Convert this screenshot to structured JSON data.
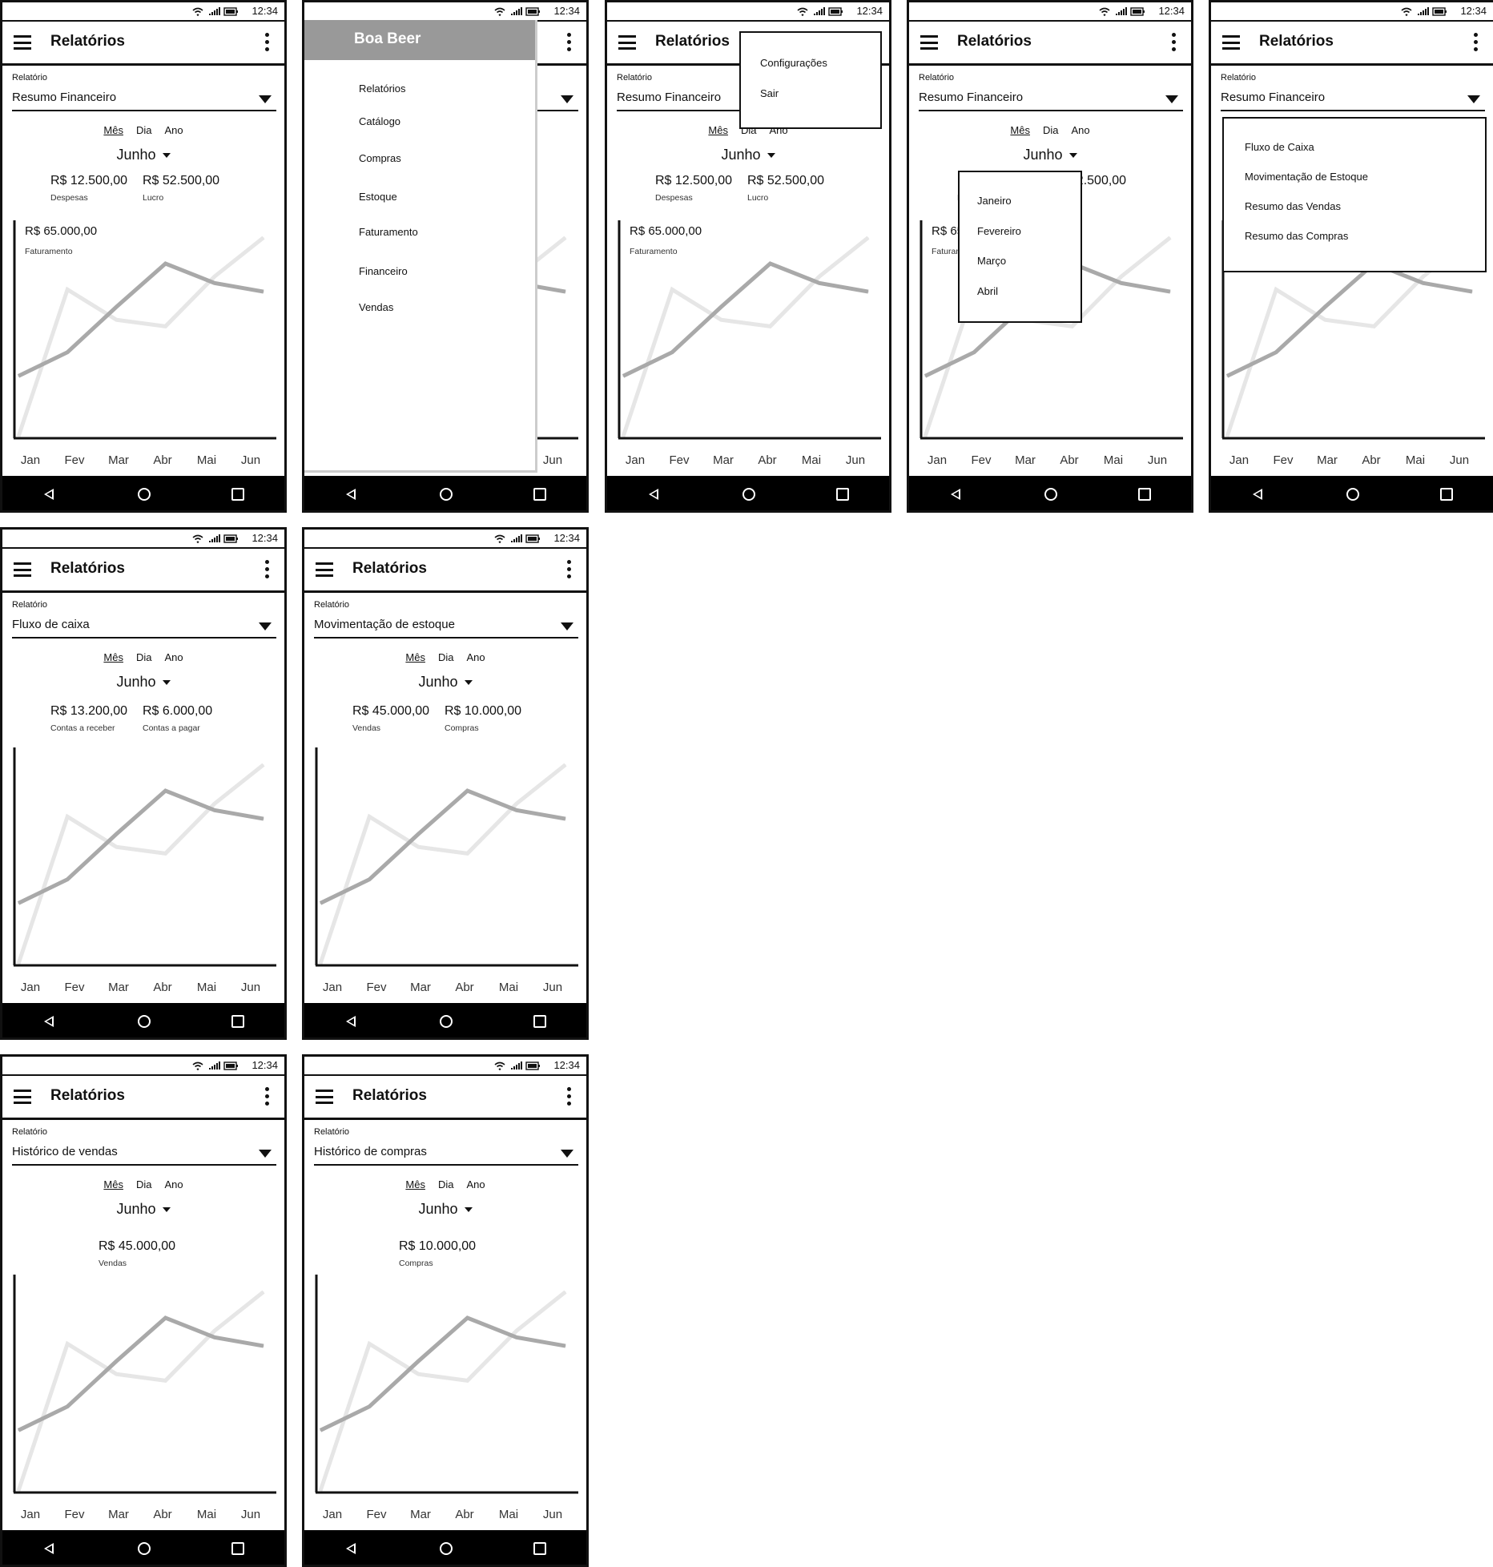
{
  "status": {
    "time": "12:34"
  },
  "labels": {
    "app_title": "Relatórios",
    "report_label": "Relatório"
  },
  "periods": [
    "Mês",
    "Dia",
    "Ano"
  ],
  "month": "Junho",
  "x_categories": [
    "Jan",
    "Fev",
    "Mar",
    "Abr",
    "Mai",
    "Jun"
  ],
  "colors": {
    "series_dark": "#a9a9a9",
    "series_light": "#e6e6e6",
    "axis": "#111111"
  },
  "screens": [
    {
      "report": "Resumo Financeiro",
      "metrics": [
        {
          "value": "R$ 12.500,00",
          "caption": "Despesas"
        },
        {
          "value": "R$ 52.500,00",
          "caption": "Lucro"
        }
      ],
      "chart_value": "R$ 65.000,00",
      "chart_caption": "Faturamento"
    },
    {
      "report": "Resumo Financeiro",
      "metrics": [],
      "drawer": {
        "title": "Boa Beer",
        "items": [
          "Relatórios",
          "Catálogo",
          "Compras",
          "Estoque",
          "Faturamento",
          "Financeiro",
          "Vendas"
        ]
      }
    },
    {
      "report": "Resumo Financeiro",
      "metrics": [
        {
          "value": "R$ 12.500,00",
          "caption": "Despesas"
        },
        {
          "value": "R$ 52.500,00",
          "caption": "Lucro"
        }
      ],
      "chart_value": "R$ 65.000,00",
      "chart_caption": "Faturamento",
      "overflow_menu": [
        "Configurações",
        "Sair"
      ]
    },
    {
      "report": "Resumo Financeiro",
      "metrics": [
        {
          "value": "R$ 12.500,00",
          "caption": "Despesas"
        },
        {
          "value": "R$ 52.500,00",
          "caption": "Lucro"
        }
      ],
      "chart_value": "R$ 65.000,00",
      "chart_caption": "Faturamento",
      "month_menu": [
        "Janeiro",
        "Fevereiro",
        "Março",
        "Abril"
      ]
    },
    {
      "report": "Resumo Financeiro",
      "metrics": [],
      "report_menu": [
        "Fluxo de Caixa",
        "Movimentação de Estoque",
        "Resumo das Vendas",
        "Resumo das Compras"
      ]
    },
    {
      "report": "Fluxo de caixa",
      "metrics": [
        {
          "value": "R$ 13.200,00",
          "caption": "Contas a receber"
        },
        {
          "value": "R$ 6.000,00",
          "caption": "Contas a pagar"
        }
      ]
    },
    {
      "report": "Movimentação de estoque",
      "metrics": [
        {
          "value": "R$ 45.000,00",
          "caption": "Vendas"
        },
        {
          "value": "R$ 10.000,00",
          "caption": "Compras"
        }
      ]
    },
    {
      "report": "Histórico de vendas",
      "metrics": [
        {
          "value": "R$ 45.000,00",
          "caption": "Vendas"
        }
      ]
    },
    {
      "report": "Histórico de compras",
      "metrics": [
        {
          "value": "R$ 10.000,00",
          "caption": "Compras"
        }
      ]
    }
  ],
  "chart_data": {
    "type": "line",
    "categories": [
      "Jan",
      "Fev",
      "Mar",
      "Abr",
      "Mai",
      "Jun"
    ],
    "ylim": [
      0,
      100
    ],
    "series": [
      {
        "values": [
          28,
          39,
          60,
          80,
          71,
          67
        ]
      },
      {
        "values": [
          0,
          68,
          54,
          51,
          74,
          92
        ]
      }
    ]
  }
}
